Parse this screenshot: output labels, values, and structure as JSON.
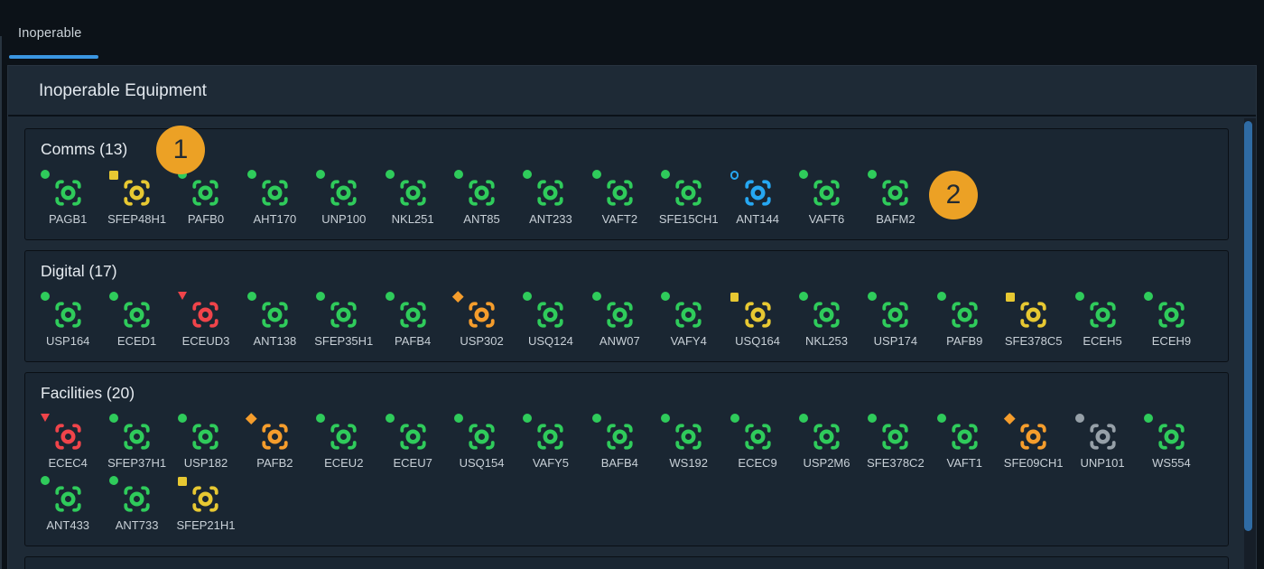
{
  "tabbar": {
    "tabs": [
      {
        "label": "Inoperable",
        "active": true
      }
    ],
    "active_underline_color": "#3b96e1"
  },
  "panel": {
    "title": "Inoperable Equipment"
  },
  "annotations": [
    {
      "label": "1"
    },
    {
      "label": "2"
    }
  ],
  "badge_color": "#eca125",
  "scrollbar_color": "#2f6ba4",
  "status_colors": {
    "green": "#2fcb5b",
    "yellow": "#e7c832",
    "red": "#f0444a",
    "blue": "#26a7f2",
    "orange": "#f59d2c",
    "gray": "#96a0a8"
  },
  "sections": [
    {
      "name": "Comms",
      "count": 13,
      "display": "Comms (13)",
      "items": [
        {
          "label": "PAGB1",
          "color": "green",
          "indicator": "dot"
        },
        {
          "label": "SFEP48H1",
          "color": "yellow",
          "indicator": "square"
        },
        {
          "label": "PAFB0",
          "color": "green",
          "indicator": "dot"
        },
        {
          "label": "AHT170",
          "color": "green",
          "indicator": "dot"
        },
        {
          "label": "UNP100",
          "color": "green",
          "indicator": "dot"
        },
        {
          "label": "NKL251",
          "color": "green",
          "indicator": "dot"
        },
        {
          "label": "ANT85",
          "color": "green",
          "indicator": "dot"
        },
        {
          "label": "ANT233",
          "color": "green",
          "indicator": "dot"
        },
        {
          "label": "VAFT2",
          "color": "green",
          "indicator": "dot"
        },
        {
          "label": "SFE15CH1",
          "color": "green",
          "indicator": "dot"
        },
        {
          "label": "ANT144",
          "color": "blue",
          "indicator": "ring"
        },
        {
          "label": "VAFT6",
          "color": "green",
          "indicator": "dot"
        },
        {
          "label": "BAFM2",
          "color": "green",
          "indicator": "dot"
        }
      ]
    },
    {
      "name": "Digital",
      "count": 17,
      "display": "Digital (17)",
      "items": [
        {
          "label": "USP164",
          "color": "green",
          "indicator": "dot"
        },
        {
          "label": "ECED1",
          "color": "green",
          "indicator": "dot"
        },
        {
          "label": "ECEUD3",
          "color": "red",
          "indicator": "triangle-down"
        },
        {
          "label": "ANT138",
          "color": "green",
          "indicator": "dot"
        },
        {
          "label": "SFEP35H1",
          "color": "green",
          "indicator": "dot"
        },
        {
          "label": "PAFB4",
          "color": "green",
          "indicator": "dot"
        },
        {
          "label": "USP302",
          "color": "orange",
          "indicator": "diamond"
        },
        {
          "label": "USQ124",
          "color": "green",
          "indicator": "dot"
        },
        {
          "label": "ANW07",
          "color": "green",
          "indicator": "dot"
        },
        {
          "label": "VAFY4",
          "color": "green",
          "indicator": "dot"
        },
        {
          "label": "USQ164",
          "color": "yellow",
          "indicator": "square"
        },
        {
          "label": "NKL253",
          "color": "green",
          "indicator": "dot"
        },
        {
          "label": "USP174",
          "color": "green",
          "indicator": "dot"
        },
        {
          "label": "PAFB9",
          "color": "green",
          "indicator": "dot"
        },
        {
          "label": "SFE378C5",
          "color": "yellow",
          "indicator": "square"
        },
        {
          "label": "ECEH5",
          "color": "green",
          "indicator": "dot"
        },
        {
          "label": "ECEH9",
          "color": "green",
          "indicator": "dot"
        }
      ]
    },
    {
      "name": "Facilities",
      "count": 20,
      "display": "Facilities (20)",
      "items": [
        {
          "label": "ECEC4",
          "color": "red",
          "indicator": "triangle-down"
        },
        {
          "label": "SFEP37H1",
          "color": "green",
          "indicator": "dot"
        },
        {
          "label": "USP182",
          "color": "green",
          "indicator": "dot"
        },
        {
          "label": "PAFB2",
          "color": "orange",
          "indicator": "diamond"
        },
        {
          "label": "ECEU2",
          "color": "green",
          "indicator": "dot"
        },
        {
          "label": "ECEU7",
          "color": "green",
          "indicator": "dot"
        },
        {
          "label": "USQ154",
          "color": "green",
          "indicator": "dot"
        },
        {
          "label": "VAFY5",
          "color": "green",
          "indicator": "dot"
        },
        {
          "label": "BAFB4",
          "color": "green",
          "indicator": "dot"
        },
        {
          "label": "WS192",
          "color": "green",
          "indicator": "dot"
        },
        {
          "label": "ECEC9",
          "color": "green",
          "indicator": "dot"
        },
        {
          "label": "USP2M6",
          "color": "green",
          "indicator": "dot"
        },
        {
          "label": "SFE378C2",
          "color": "green",
          "indicator": "dot"
        },
        {
          "label": "VAFT1",
          "color": "green",
          "indicator": "dot"
        },
        {
          "label": "SFE09CH1",
          "color": "orange",
          "indicator": "diamond"
        },
        {
          "label": "UNP101",
          "color": "gray",
          "indicator": "dot"
        },
        {
          "label": "WS554",
          "color": "green",
          "indicator": "dot"
        },
        {
          "label": "ANT433",
          "color": "green",
          "indicator": "dot"
        },
        {
          "label": "ANT733",
          "color": "green",
          "indicator": "dot"
        },
        {
          "label": "SFEP21H1",
          "color": "yellow",
          "indicator": "square"
        }
      ]
    }
  ]
}
